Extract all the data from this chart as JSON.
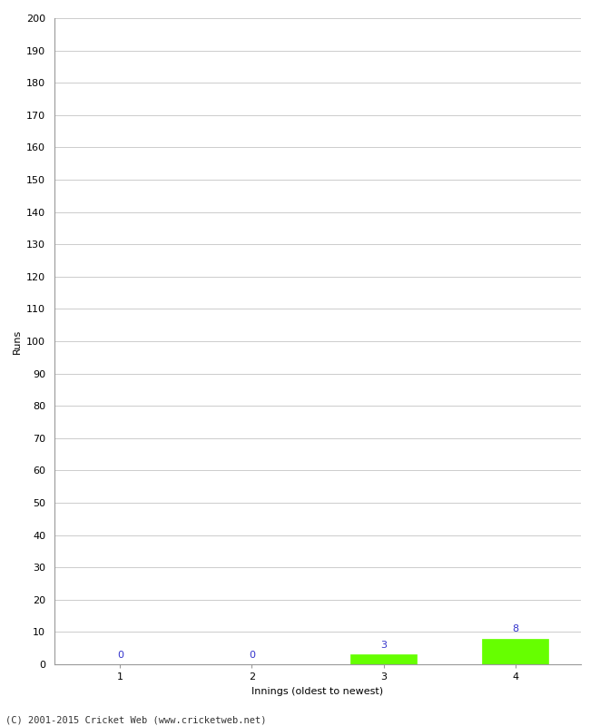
{
  "xlabel": "Innings (oldest to newest)",
  "ylabel": "Runs",
  "categories": [
    1,
    2,
    3,
    4
  ],
  "values": [
    0,
    0,
    3,
    8
  ],
  "bar_colors": [
    "#66ff00",
    "#66ff00",
    "#66ff00",
    "#66ff00"
  ],
  "value_labels": [
    "0",
    "0",
    "3",
    "8"
  ],
  "value_label_color": "#3333cc",
  "ylim": [
    0,
    200
  ],
  "yticks": [
    0,
    10,
    20,
    30,
    40,
    50,
    60,
    70,
    80,
    90,
    100,
    110,
    120,
    130,
    140,
    150,
    160,
    170,
    180,
    190,
    200
  ],
  "background_color": "#ffffff",
  "grid_color": "#cccccc",
  "footer": "(C) 2001-2015 Cricket Web (www.cricketweb.net)",
  "bar_width": 0.5,
  "value_fontsize": 8,
  "label_fontsize": 8,
  "tick_fontsize": 8,
  "ylabel_fontsize": 8,
  "footer_fontsize": 7.5
}
